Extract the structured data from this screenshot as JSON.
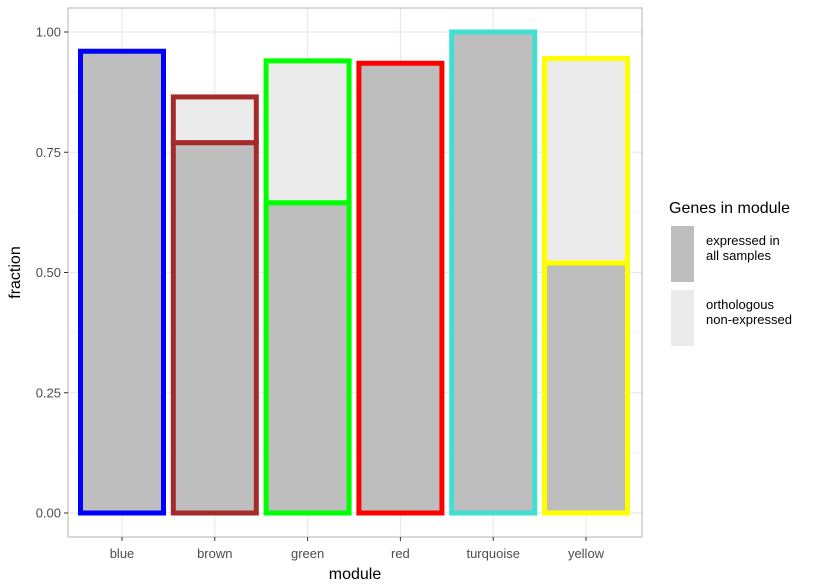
{
  "chart_data": {
    "type": "bar",
    "stacked": true,
    "xlabel": "module",
    "ylabel": "fraction",
    "ylim": [
      0,
      1.04
    ],
    "yticks": [
      "0.00",
      "0.25",
      "0.50",
      "0.75",
      "1.00"
    ],
    "ytick_values": [
      0,
      0.25,
      0.5,
      0.75,
      1.0
    ],
    "grid": true,
    "categories": [
      "blue",
      "brown",
      "green",
      "red",
      "turquoise",
      "yellow"
    ],
    "outline_colors": [
      "#0000ff",
      "#a52a2a",
      "#00ff00",
      "#ff0000",
      "#40e0d0",
      "#ffff00"
    ],
    "series": [
      {
        "name": "expressed in all samples",
        "color": "#bebebe",
        "values": [
          0.96,
          0.77,
          0.645,
          0.935,
          1.0,
          0.52
        ]
      },
      {
        "name": "orthologous non-expressed",
        "color": "#ebebeb",
        "values": [
          0.0,
          0.095,
          0.295,
          0.0,
          0.0,
          0.425
        ]
      }
    ],
    "legend": {
      "title": "Genes in module",
      "placement": "right",
      "items": [
        {
          "lines": [
            "expressed in",
            "all samples"
          ],
          "color": "#bebebe"
        },
        {
          "lines": [
            "orthologous",
            "non-expressed"
          ],
          "color": "#ebebeb"
        }
      ]
    }
  }
}
